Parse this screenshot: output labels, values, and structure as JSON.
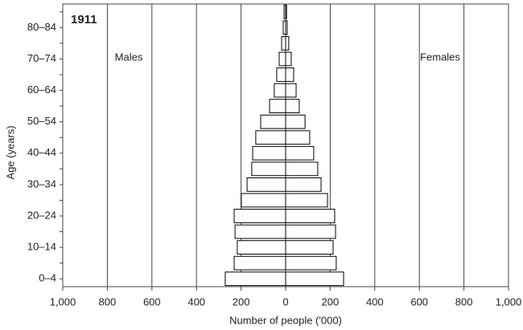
{
  "chart_data": {
    "type": "pyramid",
    "title": "1911",
    "x_label": "Number of people ('000)",
    "y_label": "Age (years)",
    "categories": [
      "0–4",
      null,
      "10–14",
      null,
      "20–24",
      null,
      "30–34",
      null,
      "40–44",
      null,
      "50–54",
      null,
      "60–64",
      null,
      "70–74",
      null,
      "80–84",
      null
    ],
    "series": [
      {
        "name": "Males",
        "color": "#ffffff",
        "values": [
          271,
          231,
          217,
          227,
          231,
          199,
          173,
          152,
          148,
          134,
          112,
          72,
          51,
          40,
          29,
          18,
          11,
          7
        ]
      },
      {
        "name": "Females",
        "color": "#ffffff",
        "values": [
          260,
          227,
          213,
          224,
          220,
          188,
          159,
          144,
          126,
          108,
          87,
          61,
          47,
          36,
          25,
          14,
          7,
          4
        ]
      }
    ],
    "xlim": [
      -1000,
      1000
    ],
    "xticks": [
      {
        "value": -1000,
        "label": "1,000"
      },
      {
        "value": -800,
        "label": "800"
      },
      {
        "value": -600,
        "label": "600"
      },
      {
        "value": -400,
        "label": "400"
      },
      {
        "value": -200,
        "label": "200"
      },
      0,
      200,
      400,
      600,
      800,
      {
        "value": 1000,
        "label": "1,000"
      }
    ],
    "grid": true
  }
}
